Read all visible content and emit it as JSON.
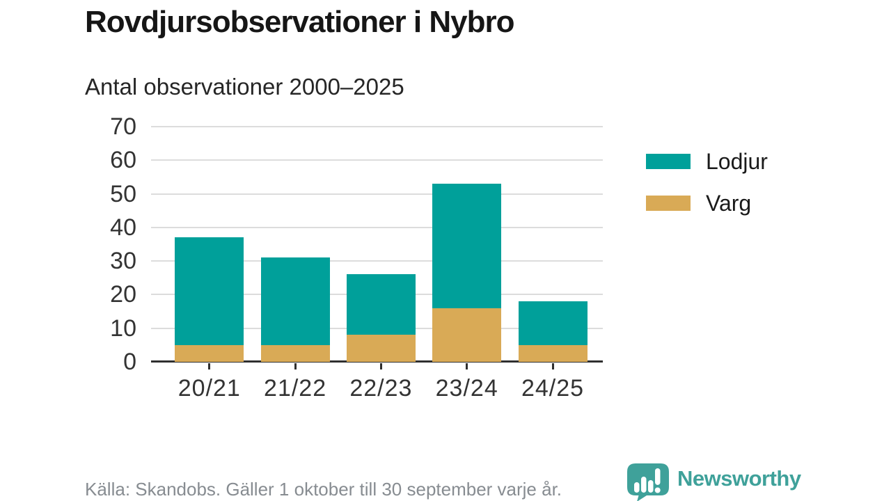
{
  "title": "Rovdjursobservationer i Nybro",
  "subtitle": "Antal observationer 2000–2025",
  "footer": {
    "source": "Källa: Skandobs. Gäller 1 oktober till 30 september varje år."
  },
  "brand": {
    "name": "Newsworthy",
    "color": "#3fa19a",
    "icon": "newsworthy-speech-bubble-chart-icon"
  },
  "colors": {
    "lodjur": "#00a09a",
    "varg": "#d9aa56",
    "grid": "#dcdcdc",
    "axis": "#2f2f2f",
    "tick_text": "#333333",
    "muted_text": "#878c91"
  },
  "chart_data": {
    "type": "bar",
    "stacked": true,
    "title": "Rovdjursobservationer i Nybro",
    "subtitle": "Antal observationer 2000–2025",
    "categories": [
      "20/21",
      "21/22",
      "22/23",
      "23/24",
      "24/25"
    ],
    "series": [
      {
        "name": "Varg",
        "color": "#d9aa56",
        "values": [
          5,
          5,
          8,
          16,
          5
        ]
      },
      {
        "name": "Lodjur",
        "color": "#00a09a",
        "values": [
          32,
          26,
          18,
          37,
          13
        ]
      }
    ],
    "totals": [
      37,
      31,
      26,
      53,
      18
    ],
    "xlabel": "",
    "ylabel": "",
    "ylim": [
      0,
      70
    ],
    "yticks": [
      0,
      10,
      20,
      30,
      40,
      50,
      60,
      70
    ],
    "grid": true,
    "legend_position": "right",
    "legend": [
      {
        "label": "Lodjur",
        "color": "#00a09a"
      },
      {
        "label": "Varg",
        "color": "#d9aa56"
      }
    ]
  }
}
